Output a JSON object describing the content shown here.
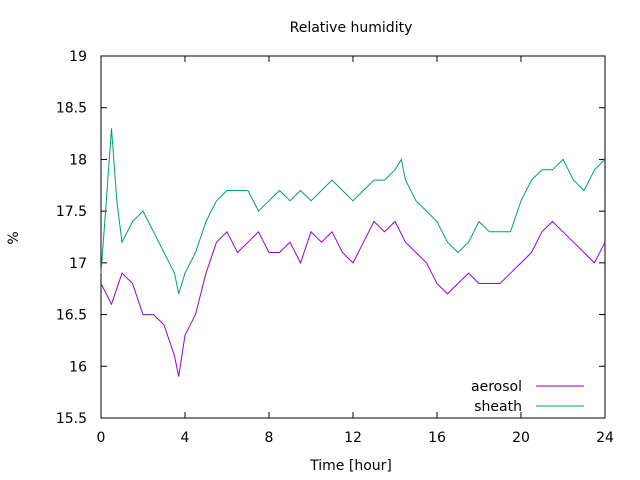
{
  "chart_data": {
    "type": "line",
    "title": "Relative humidity",
    "xlabel": "Time [hour]",
    "ylabel": "%",
    "xlim": [
      0,
      24
    ],
    "ylim": [
      15.5,
      19
    ],
    "xticks": [
      0,
      4,
      8,
      12,
      16,
      20,
      24
    ],
    "yticks": [
      15.5,
      16,
      16.5,
      17,
      17.5,
      18,
      18.5,
      19
    ],
    "ytick_labels": [
      "15.5",
      "16",
      "16.5",
      "17",
      "17.5",
      "18",
      "18.5",
      "19"
    ],
    "grid": false,
    "legend_position": "bottom-right",
    "series": [
      {
        "name": "aerosol",
        "color": "#9400d3",
        "x": [
          0,
          0.5,
          1,
          1.5,
          2,
          2.5,
          3,
          3.5,
          3.7,
          4,
          4.5,
          5,
          5.5,
          6,
          6.5,
          7,
          7.5,
          8,
          8.5,
          9,
          9.5,
          10,
          10.5,
          11,
          11.5,
          12,
          12.5,
          13,
          13.5,
          14,
          14.5,
          15,
          15.5,
          16,
          16.5,
          17,
          17.5,
          18,
          18.5,
          19,
          19.5,
          20,
          20.5,
          21,
          21.5,
          22,
          22.5,
          23,
          23.5,
          24
        ],
        "y": [
          16.8,
          16.6,
          16.9,
          16.8,
          16.5,
          16.5,
          16.4,
          16.1,
          15.9,
          16.3,
          16.5,
          16.9,
          17.2,
          17.3,
          17.1,
          17.2,
          17.3,
          17.1,
          17.1,
          17.2,
          17.0,
          17.3,
          17.2,
          17.3,
          17.1,
          17.0,
          17.2,
          17.4,
          17.3,
          17.4,
          17.2,
          17.1,
          17.0,
          16.8,
          16.7,
          16.8,
          16.9,
          16.8,
          16.8,
          16.8,
          16.9,
          17.0,
          17.1,
          17.3,
          17.4,
          17.3,
          17.2,
          17.1,
          17.0,
          17.2
        ]
      },
      {
        "name": "sheath",
        "color": "#009e73",
        "x": [
          0,
          0.25,
          0.5,
          0.75,
          1,
          1.5,
          2,
          2.5,
          3,
          3.5,
          3.7,
          4,
          4.5,
          5,
          5.5,
          6,
          6.5,
          7,
          7.5,
          8,
          8.5,
          9,
          9.5,
          10,
          10.5,
          11,
          11.5,
          12,
          12.5,
          13,
          13.5,
          14,
          14.3,
          14.5,
          15,
          15.5,
          16,
          16.5,
          17,
          17.5,
          18,
          18.5,
          19,
          19.5,
          20,
          20.5,
          21,
          21.5,
          22,
          22.5,
          23,
          23.5,
          24
        ],
        "y": [
          16.9,
          17.6,
          18.3,
          17.6,
          17.2,
          17.4,
          17.5,
          17.3,
          17.1,
          16.9,
          16.7,
          16.9,
          17.1,
          17.4,
          17.6,
          17.7,
          17.7,
          17.7,
          17.5,
          17.6,
          17.7,
          17.6,
          17.7,
          17.6,
          17.7,
          17.8,
          17.7,
          17.6,
          17.7,
          17.8,
          17.8,
          17.9,
          18.0,
          17.8,
          17.6,
          17.5,
          17.4,
          17.2,
          17.1,
          17.2,
          17.4,
          17.3,
          17.3,
          17.3,
          17.6,
          17.8,
          17.9,
          17.9,
          18.0,
          17.8,
          17.7,
          17.9,
          18.0
        ]
      }
    ]
  }
}
